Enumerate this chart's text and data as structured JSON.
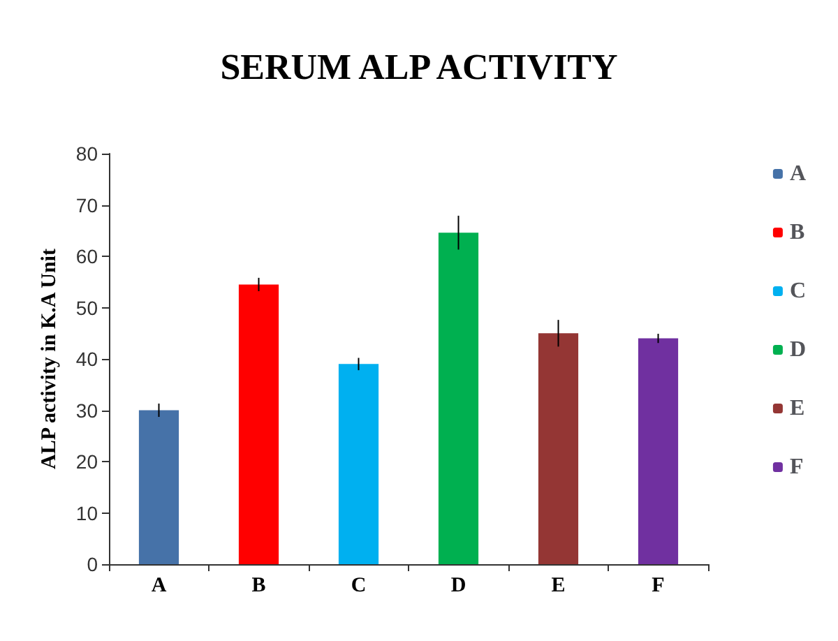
{
  "chart_data": {
    "type": "bar",
    "title": "SERUM ALP ACTIVITY",
    "ylabel": "ALP activity in K.A Unit",
    "categories": [
      "A",
      "B",
      "C",
      "D",
      "E",
      "F"
    ],
    "series": [
      {
        "name": "A",
        "color": "#4672a8",
        "values": [
          30,
          null,
          null,
          null,
          null,
          null
        ],
        "errors": [
          1.3,
          null,
          null,
          null,
          null,
          null
        ]
      },
      {
        "name": "B",
        "color": "#ff0000",
        "values": [
          null,
          54.5,
          null,
          null,
          null,
          null
        ],
        "errors": [
          null,
          1.3,
          null,
          null,
          null,
          null
        ]
      },
      {
        "name": "C",
        "color": "#00b0f0",
        "values": [
          null,
          null,
          39,
          null,
          null,
          null
        ],
        "errors": [
          null,
          null,
          1.2,
          null,
          null,
          null
        ]
      },
      {
        "name": "D",
        "color": "#00b050",
        "values": [
          null,
          null,
          null,
          64.6,
          null,
          null
        ],
        "errors": [
          null,
          null,
          null,
          3.3,
          null,
          null
        ]
      },
      {
        "name": "E",
        "color": "#943634",
        "values": [
          null,
          null,
          null,
          null,
          45,
          null
        ],
        "errors": [
          null,
          null,
          null,
          null,
          2.6,
          null
        ]
      },
      {
        "name": "F",
        "color": "#7030a0",
        "values": [
          null,
          null,
          null,
          null,
          null,
          44
        ],
        "errors": [
          null,
          null,
          null,
          null,
          null,
          0.9
        ]
      }
    ],
    "ylim": [
      0,
      80
    ],
    "yticks": [
      0,
      10,
      20,
      30,
      40,
      50,
      60,
      70,
      80
    ],
    "grid": false,
    "legend": "right"
  }
}
